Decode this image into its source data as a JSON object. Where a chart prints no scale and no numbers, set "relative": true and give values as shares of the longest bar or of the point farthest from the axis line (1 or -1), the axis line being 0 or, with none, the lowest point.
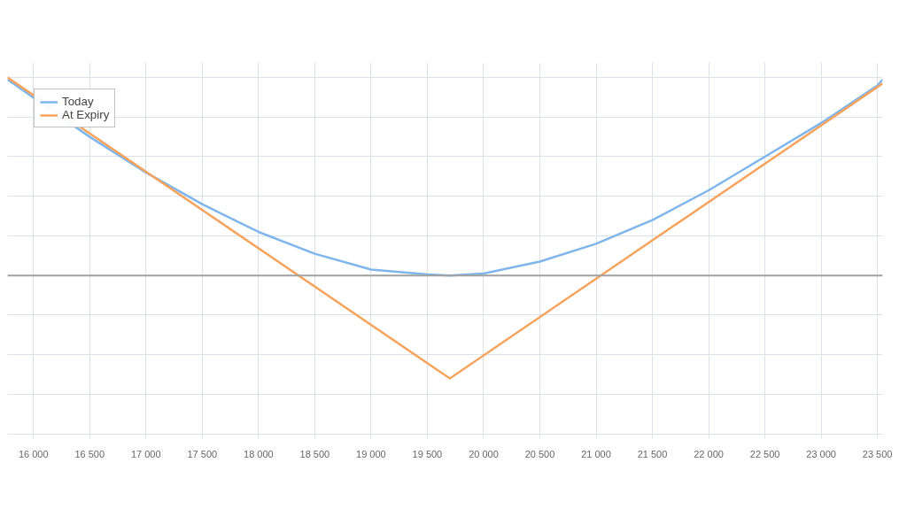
{
  "chart_data": {
    "type": "line",
    "relative": true,
    "xlim": [
      15770,
      23546
    ],
    "xticks": [
      {
        "value": 16000,
        "label": "16 000"
      },
      {
        "value": 16500,
        "label": "16 500"
      },
      {
        "value": 17000,
        "label": "17 000"
      },
      {
        "value": 17500,
        "label": "17 500"
      },
      {
        "value": 18000,
        "label": "18 000"
      },
      {
        "value": 18500,
        "label": "18 500"
      },
      {
        "value": 19000,
        "label": "19 000"
      },
      {
        "value": 19500,
        "label": "19 500"
      },
      {
        "value": 20000,
        "label": "20 000"
      },
      {
        "value": 20500,
        "label": "20 500"
      },
      {
        "value": 21000,
        "label": "21 000"
      },
      {
        "value": 21500,
        "label": "21 500"
      },
      {
        "value": 22000,
        "label": "22 000"
      },
      {
        "value": 22500,
        "label": "22 500"
      },
      {
        "value": 23000,
        "label": "23 000"
      },
      {
        "value": 23500,
        "label": "23 500"
      }
    ],
    "series": [
      {
        "name": "Today",
        "color": "#7eb6ec",
        "x": [
          15770,
          16500,
          17000,
          17500,
          18000,
          18500,
          19000,
          19500,
          19700,
          20000,
          20500,
          21000,
          21500,
          22000,
          22500,
          23000,
          23500,
          23546
        ],
        "values": [
          0.99,
          0.7,
          0.52,
          0.36,
          0.22,
          0.11,
          0.03,
          0.005,
          0,
          0.01,
          0.07,
          0.16,
          0.28,
          0.43,
          0.6,
          0.77,
          0.96,
          0.99
        ]
      },
      {
        "name": "At Expiry",
        "color": "#f7a35c",
        "x": [
          15770,
          19700,
          23546
        ],
        "values": [
          1,
          -0.52,
          0.97
        ]
      }
    ],
    "grid": true,
    "legend": "top left",
    "marker": "none",
    "line_style": "solid"
  }
}
